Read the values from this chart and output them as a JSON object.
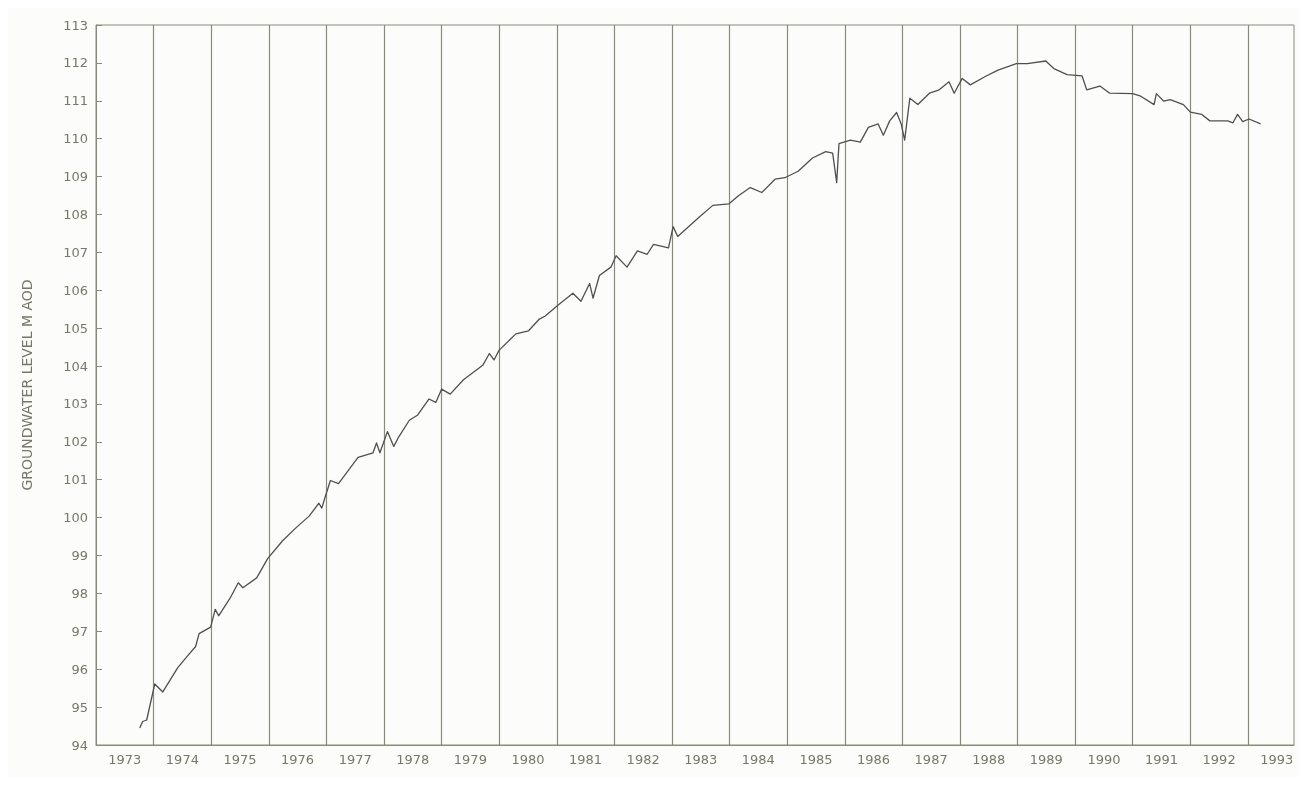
{
  "chart_data": {
    "type": "line",
    "ylabel": "GROUNDWATER LEVEL M AOD",
    "x": [
      1973.76,
      1973.81,
      1973.88,
      1974.02,
      1974.16,
      1974.42,
      1974.59,
      1974.73,
      1974.79,
      1974.99,
      1975.07,
      1975.13,
      1975.33,
      1975.47,
      1975.55,
      1975.79,
      1975.98,
      1976.24,
      1976.47,
      1976.7,
      1976.87,
      1976.92,
      1976.98,
      1977.07,
      1977.21,
      1977.55,
      1977.81,
      1977.87,
      1977.93,
      1978.06,
      1978.17,
      1978.26,
      1978.44,
      1978.58,
      1978.78,
      1978.9,
      1979.0,
      1979.15,
      1979.38,
      1979.72,
      1979.83,
      1979.91,
      1980.0,
      1980.29,
      1980.51,
      1980.69,
      1980.8,
      1981.03,
      1981.28,
      1981.42,
      1981.57,
      1981.63,
      1981.74,
      1981.94,
      1982.03,
      1982.22,
      1982.4,
      1982.57,
      1982.68,
      1982.94,
      1983.02,
      1983.1,
      1983.48,
      1983.71,
      1983.99,
      1984.16,
      1984.36,
      1984.56,
      1984.79,
      1984.96,
      1985.19,
      1985.44,
      1985.67,
      1985.79,
      1985.86,
      1985.9,
      1986.1,
      1986.27,
      1986.41,
      1986.58,
      1986.67,
      1986.78,
      1986.9,
      1986.98,
      1987.04,
      1987.13,
      1987.27,
      1987.47,
      1987.64,
      1987.81,
      1987.9,
      1988.04,
      1988.18,
      1988.44,
      1988.66,
      1988.98,
      1989.17,
      1989.49,
      1989.63,
      1989.86,
      1990.12,
      1990.2,
      1990.43,
      1990.6,
      1991.0,
      1991.14,
      1991.37,
      1991.41,
      1991.54,
      1991.65,
      1991.88,
      1992.0,
      1992.2,
      1992.34,
      1992.65,
      1992.74,
      1992.82,
      1992.91,
      1993.02,
      1993.22
    ],
    "values": [
      94.45,
      94.62,
      94.66,
      95.61,
      95.4,
      96.04,
      96.35,
      96.6,
      96.94,
      97.11,
      97.58,
      97.41,
      97.88,
      98.28,
      98.15,
      98.41,
      98.92,
      99.39,
      99.73,
      100.04,
      100.38,
      100.25,
      100.55,
      100.98,
      100.9,
      101.59,
      101.71,
      101.97,
      101.71,
      102.27,
      101.88,
      102.14,
      102.57,
      102.7,
      103.13,
      103.04,
      103.39,
      103.26,
      103.64,
      104.03,
      104.33,
      104.16,
      104.42,
      104.85,
      104.93,
      105.23,
      105.32,
      105.62,
      105.92,
      105.71,
      106.18,
      105.79,
      106.39,
      106.61,
      106.91,
      106.61,
      107.04,
      106.95,
      107.21,
      107.12,
      107.68,
      107.42,
      107.94,
      108.24,
      108.28,
      108.5,
      108.71,
      108.58,
      108.93,
      108.97,
      109.14,
      109.49,
      109.66,
      109.62,
      108.84,
      109.87,
      109.96,
      109.91,
      110.3,
      110.39,
      110.09,
      110.47,
      110.69,
      110.39,
      109.96,
      111.07,
      110.9,
      111.2,
      111.29,
      111.5,
      111.2,
      111.59,
      111.42,
      111.64,
      111.81,
      111.98,
      111.98,
      112.05,
      111.85,
      111.69,
      111.66,
      111.29,
      111.39,
      111.2,
      111.19,
      111.12,
      110.9,
      111.19,
      110.99,
      111.03,
      110.9,
      110.7,
      110.64,
      110.47,
      110.47,
      110.42,
      110.64,
      110.45,
      110.52,
      110.39
    ],
    "color": "#505050",
    "xlim": [
      1973,
      1993.8
    ],
    "xticks": [
      {
        "value": 1973.5,
        "label": "1973"
      },
      {
        "value": 1974.5,
        "label": "1974"
      },
      {
        "value": 1975.5,
        "label": "1975"
      },
      {
        "value": 1976.5,
        "label": "1976"
      },
      {
        "value": 1977.5,
        "label": "1977"
      },
      {
        "value": 1978.5,
        "label": "1978"
      },
      {
        "value": 1979.5,
        "label": "1979"
      },
      {
        "value": 1980.5,
        "label": "1980"
      },
      {
        "value": 1981.5,
        "label": "1981"
      },
      {
        "value": 1982.5,
        "label": "1982"
      },
      {
        "value": 1983.5,
        "label": "1983"
      },
      {
        "value": 1984.5,
        "label": "1984"
      },
      {
        "value": 1985.5,
        "label": "1985"
      },
      {
        "value": 1986.5,
        "label": "1986"
      },
      {
        "value": 1987.5,
        "label": "1987"
      },
      {
        "value": 1988.5,
        "label": "1988"
      },
      {
        "value": 1989.5,
        "label": "1989"
      },
      {
        "value": 1990.5,
        "label": "1990"
      },
      {
        "value": 1991.5,
        "label": "1991"
      },
      {
        "value": 1992.5,
        "label": "1992"
      },
      {
        "value": 1993.5,
        "label": "1993"
      },
      {
        "value": 1974,
        "label": null
      },
      {
        "value": 1975,
        "label": null
      },
      {
        "value": 1976,
        "label": null
      },
      {
        "value": 1977,
        "label": null
      },
      {
        "value": 1978,
        "label": null
      },
      {
        "value": 1979,
        "label": null
      },
      {
        "value": 1980,
        "label": null
      },
      {
        "value": 1981,
        "label": null
      },
      {
        "value": 1982,
        "label": null
      },
      {
        "value": 1983,
        "label": null
      },
      {
        "value": 1984,
        "label": null
      },
      {
        "value": 1985,
        "label": null
      },
      {
        "value": 1986,
        "label": null
      },
      {
        "value": 1987,
        "label": null
      },
      {
        "value": 1988,
        "label": null
      },
      {
        "value": 1989,
        "label": null
      },
      {
        "value": 1990,
        "label": null
      },
      {
        "value": 1991,
        "label": null
      },
      {
        "value": 1992,
        "label": null
      },
      {
        "value": 1993,
        "label": null
      }
    ],
    "ylim": [
      94,
      113
    ],
    "yticks": [
      94,
      95,
      96,
      97,
      98,
      99,
      100,
      101,
      102,
      103,
      104,
      105,
      106,
      107,
      108,
      109,
      110,
      111,
      112,
      113
    ],
    "grid": "x"
  }
}
